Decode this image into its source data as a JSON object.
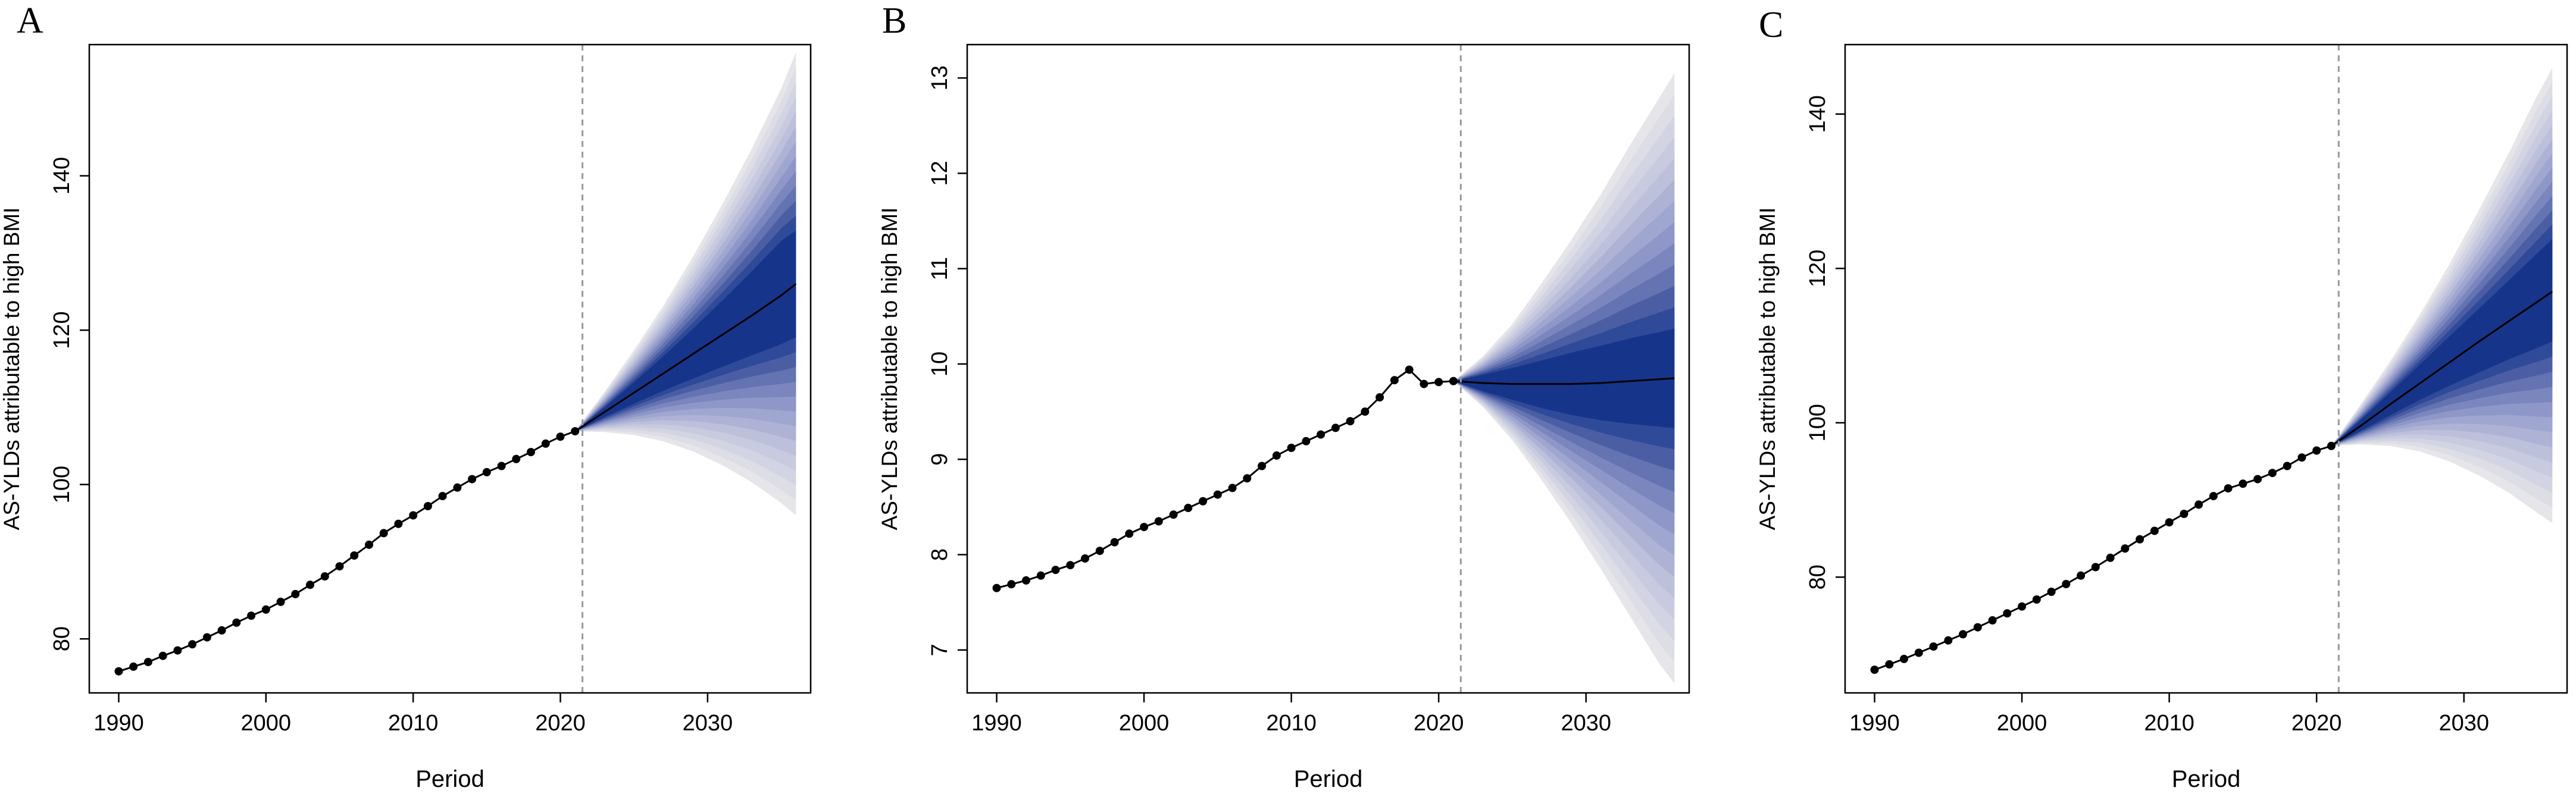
{
  "chart_data": [
    {
      "panel_label": "A",
      "type": "line",
      "xlabel": "Period",
      "ylabel": "AS-YLDs attributable to high BMI",
      "xlim": [
        1988,
        2037
      ],
      "ylim": [
        73,
        157
      ],
      "xticks": [
        "1990",
        "2000",
        "2010",
        "2020",
        "2030"
      ],
      "yticks": [
        "80",
        "100",
        "120",
        "140"
      ],
      "cutoff_year": 2021.5,
      "observed": {
        "x": [
          1990,
          1991,
          1992,
          1993,
          1994,
          1995,
          1996,
          1997,
          1998,
          1999,
          2000,
          2001,
          2002,
          2003,
          2004,
          2005,
          2006,
          2007,
          2008,
          2009,
          2010,
          2011,
          2012,
          2013,
          2014,
          2015,
          2016,
          2017,
          2018,
          2019,
          2020,
          2021
        ],
        "y": [
          75.8,
          76.4,
          77.0,
          77.8,
          78.5,
          79.3,
          80.2,
          81.1,
          82.1,
          83.0,
          83.8,
          84.8,
          85.8,
          87.0,
          88.1,
          89.4,
          90.8,
          92.2,
          93.7,
          94.9,
          96.0,
          97.2,
          98.5,
          99.6,
          100.7,
          101.6,
          102.4,
          103.3,
          104.2,
          105.3,
          106.2,
          106.9
        ]
      },
      "forecast": {
        "x": [
          2021,
          2023,
          2025,
          2027,
          2029,
          2031,
          2033,
          2035,
          2036
        ],
        "mean": [
          106.9,
          109.4,
          111.9,
          114.4,
          116.9,
          119.4,
          121.9,
          124.5,
          126.0
        ],
        "outer_lower": [
          106.9,
          106.8,
          106.4,
          105.6,
          104.3,
          102.5,
          100.3,
          97.6,
          96.0
        ],
        "outer_upper": [
          106.9,
          112.0,
          117.4,
          123.2,
          129.5,
          136.3,
          143.5,
          151.3,
          156.0
        ],
        "inner_lower": [
          106.9,
          108.9,
          110.8,
          112.7,
          114.5,
          116.3,
          118.1,
          119.9,
          121.0
        ],
        "inner_upper": [
          106.9,
          109.8,
          112.9,
          116.1,
          119.4,
          122.8,
          126.3,
          129.9,
          131.0
        ]
      }
    },
    {
      "panel_label": "B",
      "type": "line",
      "xlabel": "Period",
      "ylabel": "AS-YLDs attributable to high BMI",
      "xlim": [
        1988,
        2037
      ],
      "ylim": [
        6.55,
        13.35
      ],
      "xticks": [
        "1990",
        "2000",
        "2010",
        "2020",
        "2030"
      ],
      "yticks": [
        "7",
        "8",
        "9",
        "10",
        "11",
        "12",
        "13"
      ],
      "cutoff_year": 2021.5,
      "observed": {
        "x": [
          1990,
          1991,
          1992,
          1993,
          1994,
          1995,
          1996,
          1997,
          1998,
          1999,
          2000,
          2001,
          2002,
          2003,
          2004,
          2005,
          2006,
          2007,
          2008,
          2009,
          2010,
          2011,
          2012,
          2013,
          2014,
          2015,
          2016,
          2017,
          2018,
          2019,
          2020,
          2021
        ],
        "y": [
          7.65,
          7.69,
          7.73,
          7.78,
          7.84,
          7.89,
          7.96,
          8.04,
          8.13,
          8.22,
          8.29,
          8.35,
          8.42,
          8.49,
          8.56,
          8.63,
          8.7,
          8.8,
          8.93,
          9.04,
          9.12,
          9.19,
          9.26,
          9.33,
          9.4,
          9.5,
          9.65,
          9.83,
          9.94,
          9.79,
          9.81,
          9.82
        ]
      },
      "forecast": {
        "x": [
          2021,
          2023,
          2025,
          2027,
          2029,
          2031,
          2033,
          2035,
          2036
        ],
        "mean": [
          9.82,
          9.8,
          9.79,
          9.79,
          9.79,
          9.8,
          9.82,
          9.84,
          9.85
        ],
        "outer_lower": [
          9.82,
          9.55,
          9.2,
          8.78,
          8.33,
          7.85,
          7.35,
          6.85,
          6.65
        ],
        "outer_upper": [
          9.82,
          10.08,
          10.42,
          10.85,
          11.3,
          11.78,
          12.3,
          12.8,
          13.05
        ],
        "inner_lower": [
          9.82,
          9.73,
          9.66,
          9.6,
          9.56,
          9.54,
          9.54,
          9.55,
          9.55
        ],
        "inner_upper": [
          9.82,
          9.87,
          9.92,
          9.97,
          10.02,
          10.06,
          10.1,
          10.13,
          10.15
        ]
      }
    },
    {
      "panel_label": "C",
      "type": "line",
      "xlabel": "Period",
      "ylabel": "AS-YLDs attributable to high BMI",
      "xlim": [
        1988,
        2037
      ],
      "ylim": [
        65,
        149
      ],
      "xticks": [
        "1990",
        "2000",
        "2010",
        "2020",
        "2030"
      ],
      "yticks": [
        "80",
        "100",
        "120",
        "140"
      ],
      "cutoff_year": 2021.5,
      "observed": {
        "x": [
          1990,
          1991,
          1992,
          1993,
          1994,
          1995,
          1996,
          1997,
          1998,
          1999,
          2000,
          2001,
          2002,
          2003,
          2004,
          2005,
          2006,
          2007,
          2008,
          2009,
          2010,
          2011,
          2012,
          2013,
          2014,
          2015,
          2016,
          2017,
          2018,
          2019,
          2020,
          2021
        ],
        "y": [
          68.0,
          68.7,
          69.4,
          70.2,
          71.0,
          71.8,
          72.6,
          73.5,
          74.4,
          75.3,
          76.2,
          77.1,
          78.1,
          79.1,
          80.2,
          81.3,
          82.5,
          83.7,
          84.9,
          86.0,
          87.1,
          88.2,
          89.4,
          90.5,
          91.5,
          92.1,
          92.7,
          93.5,
          94.4,
          95.5,
          96.4,
          97.0
        ]
      },
      "forecast": {
        "x": [
          2021,
          2023,
          2025,
          2027,
          2029,
          2031,
          2033,
          2035,
          2036
        ],
        "mean": [
          97.0,
          99.6,
          102.4,
          105.1,
          107.8,
          110.5,
          113.1,
          115.7,
          117.0
        ],
        "outer_lower": [
          97.0,
          97.2,
          97.0,
          96.3,
          95.0,
          93.2,
          91.0,
          88.3,
          87.0
        ],
        "outer_upper": [
          97.0,
          102.4,
          108.0,
          114.0,
          120.5,
          127.5,
          134.8,
          142.5,
          146.0
        ],
        "inner_lower": [
          97.0,
          99.1,
          101.3,
          103.5,
          105.6,
          107.6,
          109.6,
          111.5,
          112.5
        ],
        "inner_upper": [
          97.0,
          100.2,
          103.6,
          107.0,
          110.4,
          113.7,
          117.0,
          120.3,
          122.0
        ]
      }
    }
  ],
  "style": {
    "band_colors": [
      "#e6e6ea",
      "#dddde6",
      "#d3d4e3",
      "#c8cadf",
      "#bcc0db",
      "#aeb3d5",
      "#9fa6cf",
      "#8e97c7",
      "#7a86bd",
      "#6473b1",
      "#4b5ea4",
      "#2f4a98",
      "#16358a"
    ],
    "point_color": "#000000",
    "mean_line_color": "#000000",
    "cutoff_color": "#999999"
  }
}
